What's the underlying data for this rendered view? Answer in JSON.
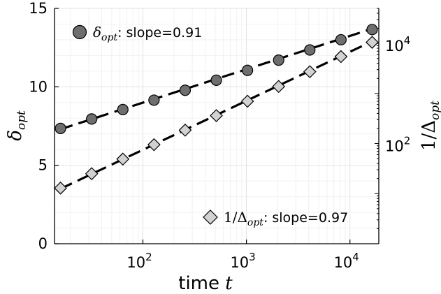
{
  "chart_data": {
    "type": "scatter",
    "x": [
      16,
      32,
      64,
      128,
      256,
      512,
      1024,
      2048,
      4096,
      8192,
      16384
    ],
    "xscale": "log",
    "xlim": [
      14,
      19000
    ],
    "xlabel": "time t",
    "xticks": [
      {
        "value": 100,
        "base": "10",
        "exp": "2"
      },
      {
        "value": 1000,
        "base": "10",
        "exp": "3"
      },
      {
        "value": 10000,
        "base": "10",
        "exp": "4"
      }
    ],
    "left_axis": {
      "label": "δ_opt",
      "ylim": [
        0,
        15
      ],
      "ticks": [
        "0",
        "5",
        "10",
        "15"
      ]
    },
    "right_axis": {
      "label": "1/Δ_opt",
      "scale": "log",
      "ylim": [
        1,
        50000
      ],
      "ticks": [
        {
          "value": 100,
          "base": "10",
          "exp": "2"
        },
        {
          "value": 10000,
          "base": "10",
          "exp": "4"
        }
      ]
    },
    "series": [
      {
        "name": "δ_opt",
        "axis": "left",
        "marker": "circle",
        "color": "#6e6e6e",
        "values": [
          7.35,
          7.95,
          8.55,
          9.15,
          9.78,
          10.42,
          11.05,
          11.7,
          12.35,
          13.0,
          13.65
        ],
        "fit_line": [
          7.3,
          13.7
        ],
        "legend_symbol": "δ",
        "legend_sub": "opt",
        "legend_suffix": ": slope=0.91"
      },
      {
        "name": "1/Δ_opt",
        "axis": "right",
        "marker": "diamond",
        "color": "#d2d2d2",
        "values": [
          12.9,
          25,
          49,
          95,
          185,
          361,
          700,
          1380,
          2720,
          5450,
          10500
        ],
        "fit_line": [
          12.5,
          11000
        ],
        "legend_symbol": "1/Δ",
        "legend_sub": "opt",
        "legend_suffix": ": slope=0.97"
      }
    ]
  }
}
